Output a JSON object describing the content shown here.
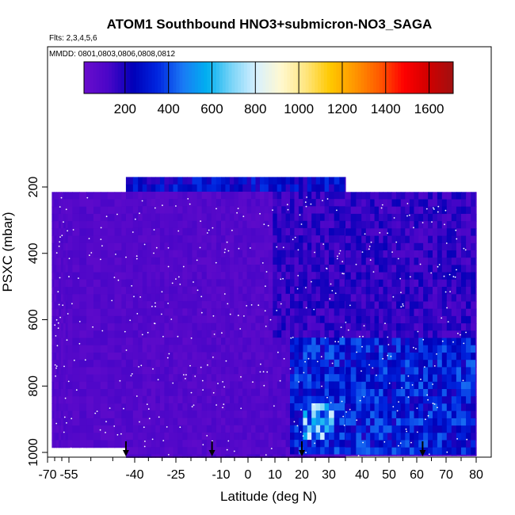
{
  "figure": {
    "title": "ATOM1 Southbound HNO3+submicron-NO3_SAGA",
    "flights_note": "Flts: 2,3,4,5,6",
    "dates_note": "MMDD: 0801,0803,0806,0808,0812"
  },
  "chart_data": {
    "type": "heatmap",
    "title": "ATOM1 Southbound HNO3+submicron-NO3_SAGA",
    "xlabel": "Latitude (deg N)",
    "ylabel": "PSXC (mbar)",
    "xlim": [
      -70,
      85
    ],
    "ylim": [
      1020,
      150
    ],
    "y_reversed": true,
    "x_ticks_major": [
      -70,
      -55,
      -40,
      -25,
      -10,
      0,
      10,
      20,
      30,
      40,
      50,
      60,
      70,
      80
    ],
    "x_ticks_minor": [
      -65,
      -60,
      -50,
      -45,
      -35,
      -30,
      -20,
      -15,
      -5,
      5,
      15,
      25,
      35,
      45,
      55,
      65,
      75
    ],
    "y_ticks": [
      200,
      400,
      600,
      800,
      1000
    ],
    "colorbar": {
      "range": [
        0,
        1700
      ],
      "ticks": [
        200,
        400,
        600,
        800,
        1000,
        1200,
        1400,
        1600
      ],
      "colors": [
        "#6a0dcc",
        "#4a06c8",
        "#0000b8",
        "#0026e0",
        "#1a78f5",
        "#00b0f0",
        "#7ad4f7",
        "#d8f0ff",
        "#fff8d0",
        "#ffe680",
        "#ffc800",
        "#ff9600",
        "#ff5a00",
        "#ff0000",
        "#d00000",
        "#a01010"
      ]
    },
    "coverage": [
      {
        "lat": [
          -67,
          -42
        ],
        "p_top": 215,
        "p_bottom": 985
      },
      {
        "lat": [
          -42,
          35
        ],
        "p_top": 170,
        "p_bottom": 1015
      },
      {
        "lat": [
          35,
          80
        ],
        "p_top": 215,
        "p_bottom": 1010
      }
    ],
    "approx_values": [
      {
        "lat_range": [
          -67,
          10
        ],
        "p_range": [
          200,
          1000
        ],
        "value": 80
      },
      {
        "lat_range": [
          10,
          80
        ],
        "p_range": [
          200,
          650
        ],
        "value": 150
      },
      {
        "lat_range": [
          15,
          80
        ],
        "p_range": [
          650,
          1000
        ],
        "value": 300
      },
      {
        "lat_range": [
          20,
          32
        ],
        "p_range": [
          850,
          960
        ],
        "value": 550
      },
      {
        "lat_range": [
          -42,
          35
        ],
        "p_range": [
          170,
          215
        ],
        "value": 250
      }
    ],
    "arrows_lat": [
      -42,
      -13,
      20,
      62
    ],
    "arrows_p": 1000
  }
}
